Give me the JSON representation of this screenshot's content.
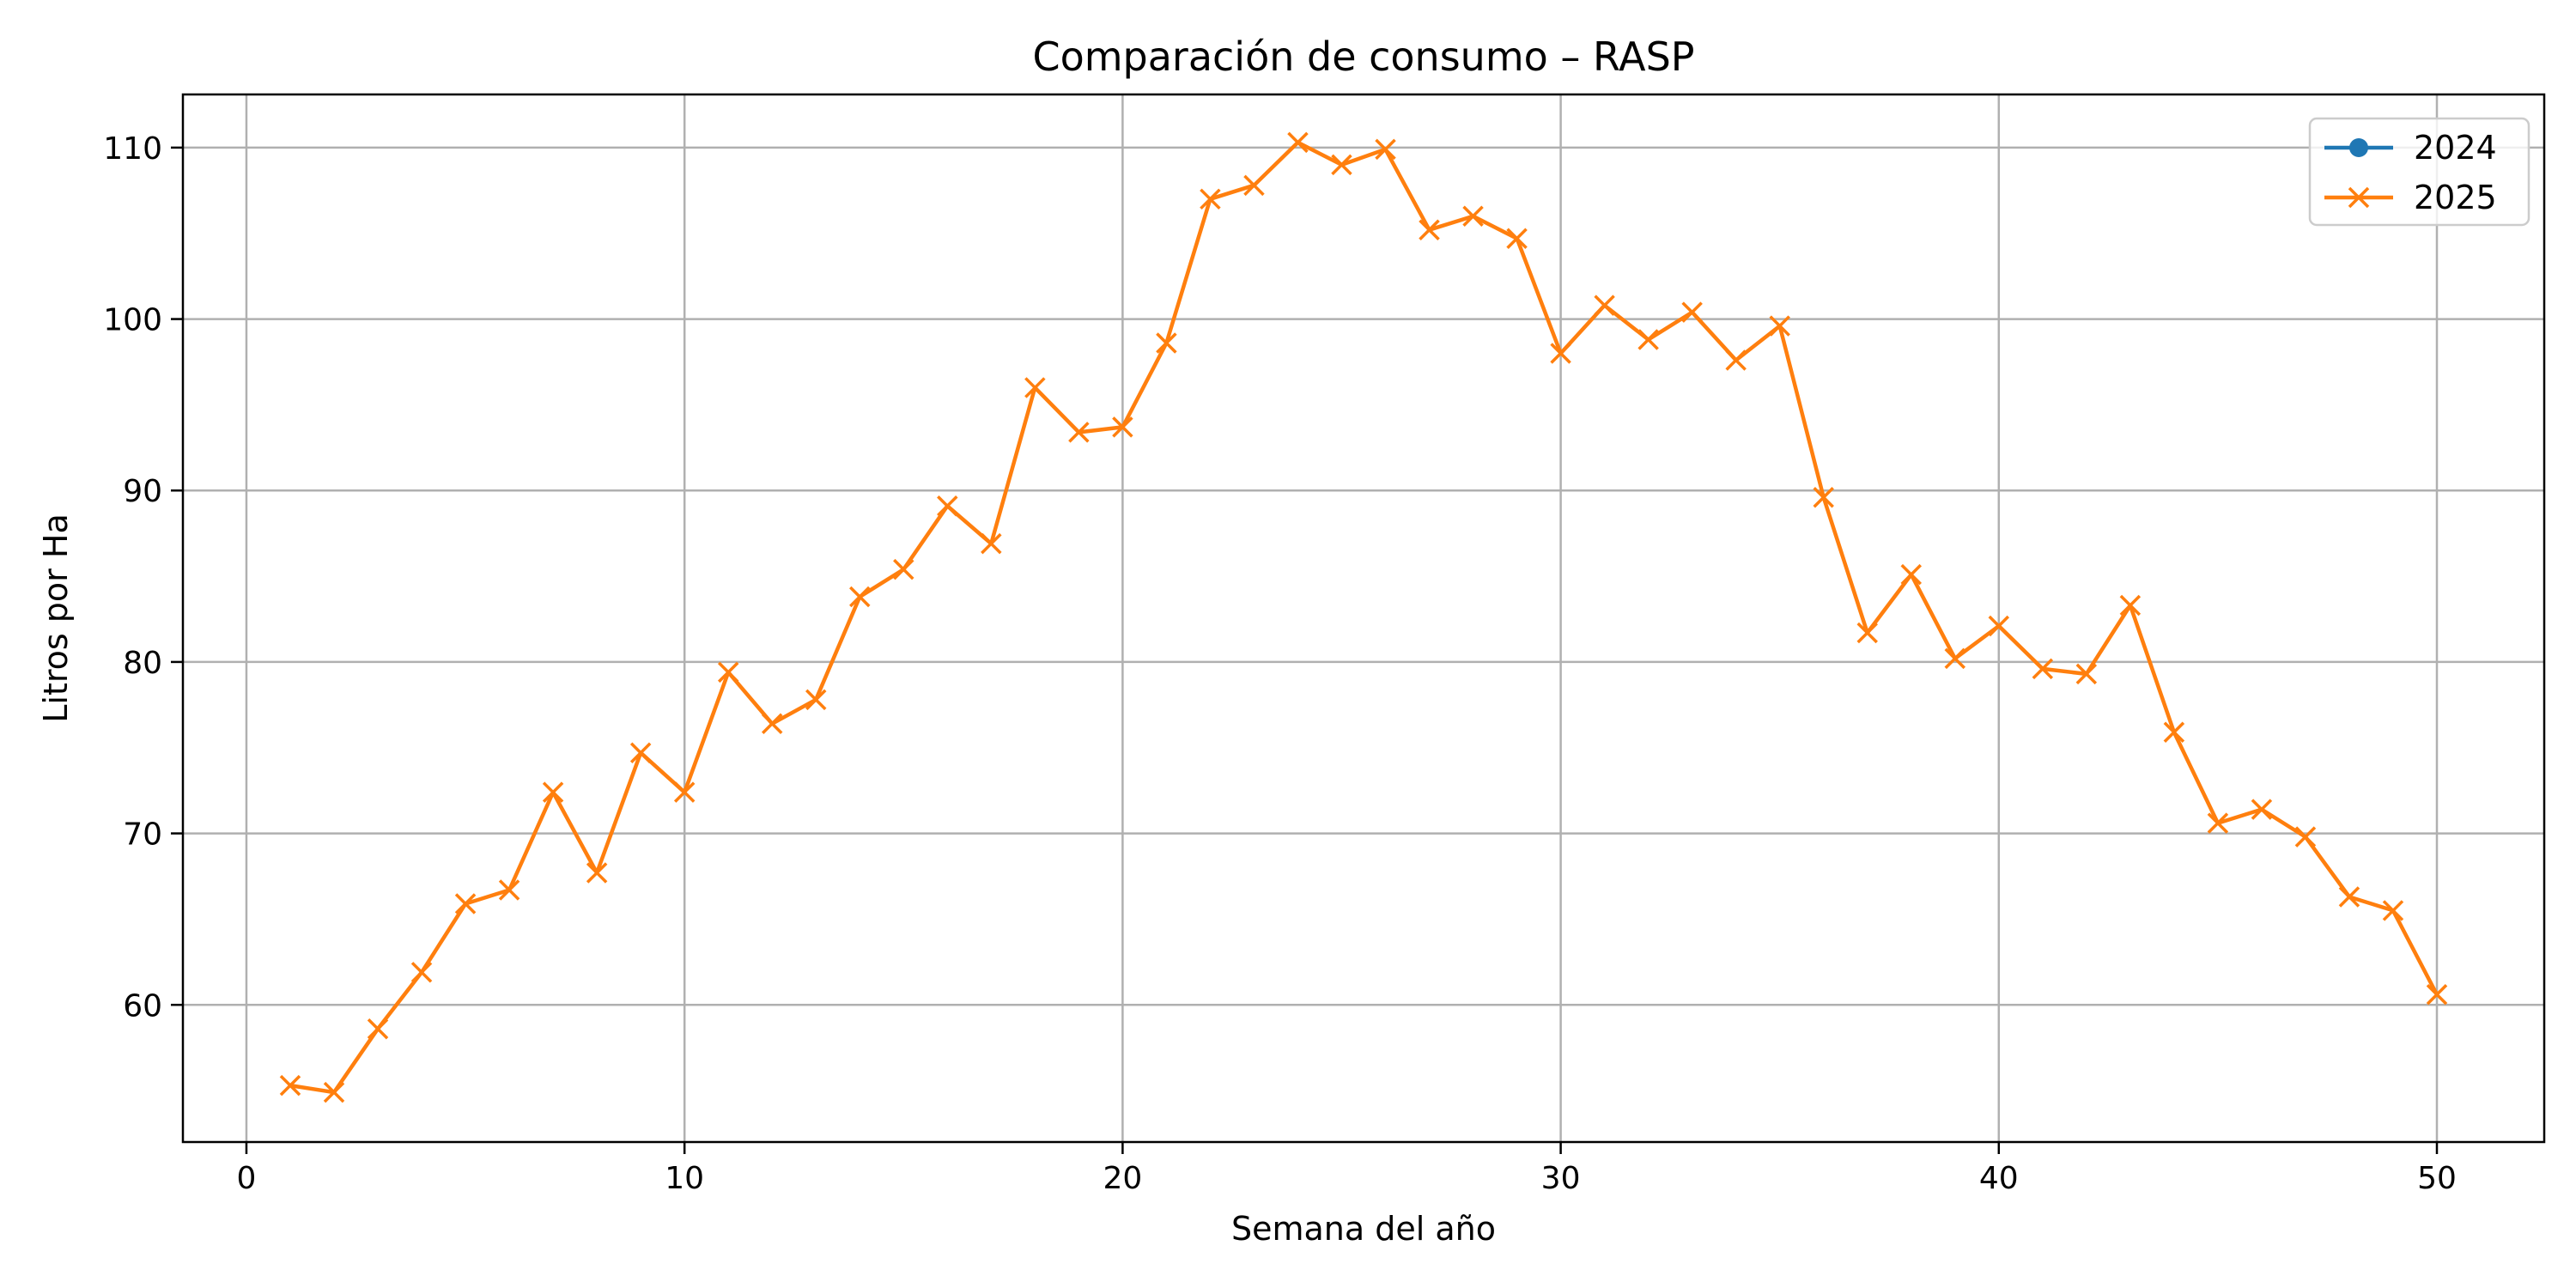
{
  "chart_data": {
    "type": "line",
    "title": "Comparación de consumo – RASP",
    "xlabel": "Semana del año",
    "ylabel": "Litros por Ha",
    "xlim": [
      -1.45,
      52.45
    ],
    "ylim": [
      52.0,
      113.1
    ],
    "xticks": [
      0,
      10,
      20,
      30,
      40,
      50
    ],
    "yticks": [
      60,
      70,
      80,
      90,
      100,
      110
    ],
    "grid": true,
    "legend_position": "top-right",
    "series": [
      {
        "name": "2024",
        "color": "#1f77b4",
        "marker": "circle",
        "x": [],
        "y": []
      },
      {
        "name": "2025",
        "color": "#ff7f0e",
        "marker": "x",
        "x": [
          1,
          2,
          3,
          4,
          5,
          6,
          7,
          8,
          9,
          10,
          11,
          12,
          13,
          14,
          15,
          16,
          17,
          18,
          19,
          20,
          21,
          22,
          23,
          24,
          25,
          26,
          27,
          28,
          29,
          30,
          31,
          32,
          33,
          34,
          35,
          36,
          37,
          38,
          39,
          40,
          41,
          42,
          43,
          44,
          45,
          46,
          47,
          48,
          49,
          50
        ],
        "y": [
          55.3,
          54.9,
          58.6,
          61.9,
          65.9,
          66.7,
          72.4,
          67.7,
          74.7,
          72.4,
          79.4,
          76.4,
          77.8,
          83.8,
          85.4,
          89.1,
          86.9,
          96.0,
          93.4,
          93.7,
          98.6,
          107.0,
          107.8,
          110.3,
          109.0,
          109.9,
          105.2,
          106.0,
          104.7,
          98.0,
          100.8,
          98.8,
          100.4,
          97.6,
          99.6,
          89.6,
          81.7,
          85.1,
          80.2,
          82.1,
          79.6,
          79.3,
          83.3,
          75.9,
          70.6,
          71.4,
          69.8,
          66.3,
          65.5,
          60.6
        ]
      }
    ]
  }
}
